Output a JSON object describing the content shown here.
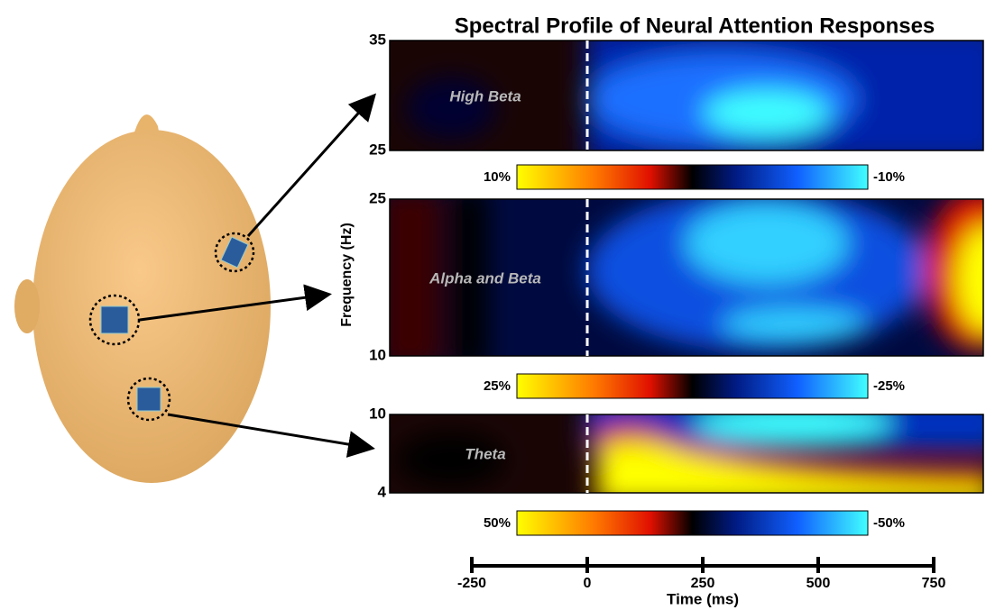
{
  "title": "Spectral Profile of Neural Attention Responses",
  "y_label": "Frequency (Hz)",
  "x_axis": {
    "label": "Time (ms)",
    "xlim": [
      -250,
      750
    ],
    "ticks": [
      -250,
      0,
      250,
      500,
      750
    ]
  },
  "panels": [
    {
      "label": "High Beta",
      "ylim": [
        25,
        35
      ],
      "yticks": [
        25,
        35
      ],
      "colorbar": [
        "10%",
        "-10%"
      ]
    },
    {
      "label": "Alpha and Beta",
      "ylim": [
        10,
        25
      ],
      "yticks": [
        10,
        25
      ],
      "colorbar": [
        "25%",
        "-25%"
      ]
    },
    {
      "label": "Theta",
      "ylim": [
        4,
        10
      ],
      "yticks": [
        4,
        10
      ],
      "colorbar": [
        "50%",
        "-50%"
      ]
    }
  ]
}
